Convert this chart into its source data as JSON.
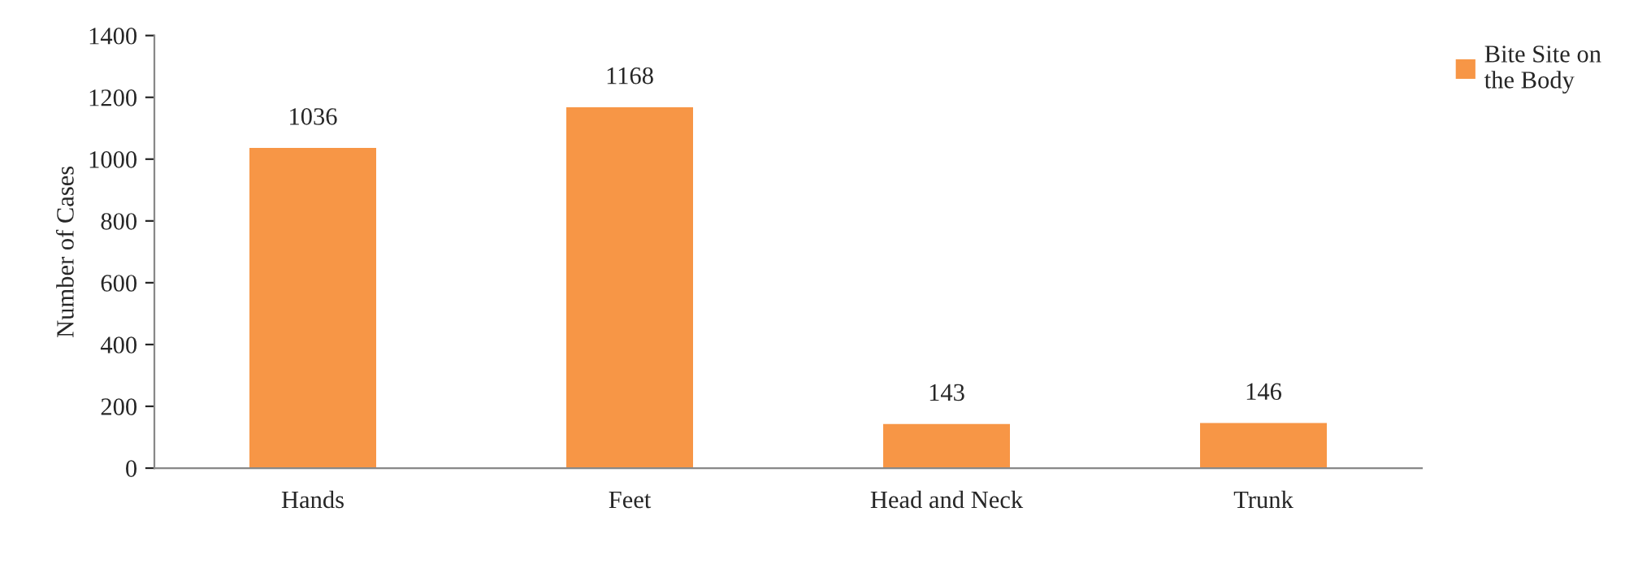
{
  "chart_data": {
    "type": "bar",
    "ylabel": "Number of Cases",
    "categories": [
      "Hands",
      "Feet",
      "Head and Neck",
      "Trunk"
    ],
    "series": [
      {
        "name": "Bite Site on the Body",
        "color": "#f79646",
        "values": [
          1036,
          1168,
          143,
          146
        ]
      }
    ],
    "ylim": [
      0,
      1400
    ],
    "yticks": [
      0,
      200,
      400,
      600,
      800,
      1000,
      1200,
      1400
    ],
    "data_labels": true,
    "legend": "top right",
    "grid": false
  }
}
